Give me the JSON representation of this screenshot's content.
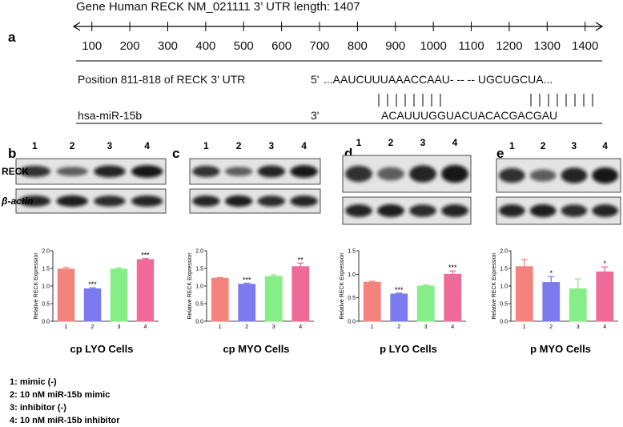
{
  "gene": {
    "title": "Gene Human  RECK NM_021111 3’ UTR length:  1407",
    "panel": "a",
    "axis": {
      "xlim": [
        52,
        1445
      ],
      "xticks": [
        100,
        200,
        300,
        400,
        500,
        600,
        700,
        800,
        900,
        1000,
        1100,
        1200,
        1300,
        1400
      ]
    },
    "position_label": "Position 811-818 of RECK 3' UTR",
    "utr_end": "5'",
    "utr_seq": "...AAUCUUUAAACCAAU-  -- -- UGCUGCUA...",
    "mirna_label": "hsa-miR-15b",
    "mirna_end": "3'",
    "mirna_seq": "ACAUUUGGUACUACACGACGAU"
  },
  "blots": {
    "panels": [
      "b",
      "c",
      "d",
      "e"
    ],
    "lanes": [
      "1",
      "2",
      "3",
      "4"
    ],
    "rows": [
      "RECK",
      "β-actin"
    ]
  },
  "legend": [
    "1:  mimic (-)",
    "2:  10 nM miR-15b mimic",
    "3:  inhibitor (-)",
    "4:  10 nM miR-15b inhibitor"
  ],
  "chart_data": [
    {
      "type": "bar",
      "title": "cp LYO Cells",
      "ylabel": "Relative RECK Expression",
      "categories": [
        "1",
        "2",
        "3",
        "4"
      ],
      "values": [
        1.48,
        0.92,
        1.48,
        1.75
      ],
      "errors": [
        0.05,
        0.03,
        0.04,
        0.03
      ],
      "annotations": [
        null,
        "***",
        null,
        "***"
      ],
      "colors": [
        "#f4837d",
        "#7b7bef",
        "#86ee86",
        "#ef6a98"
      ],
      "ylim": [
        0,
        2.0
      ],
      "yticks": [
        {
          "value": 0,
          "label": "0.0"
        },
        {
          "value": 0.5,
          "label": "0.5"
        },
        {
          "value": 1,
          "label": "1.0"
        },
        {
          "value": 1.5,
          "label": "1.5"
        },
        {
          "value": 2,
          "label": "2.0"
        }
      ]
    },
    {
      "type": "bar",
      "title": "cp MYO Cells",
      "ylabel": "Relative RECK Expression",
      "categories": [
        "1",
        "2",
        "3",
        "4"
      ],
      "values": [
        1.22,
        1.05,
        1.27,
        1.55
      ],
      "errors": [
        0.02,
        0.03,
        0.05,
        0.1
      ],
      "annotations": [
        null,
        "***",
        null,
        "**"
      ],
      "colors": [
        "#f4837d",
        "#7b7bef",
        "#86ee86",
        "#ef6a98"
      ],
      "ylim": [
        0,
        2.0
      ],
      "yticks": [
        {
          "value": 0,
          "label": "0.0"
        },
        {
          "value": 0.5,
          "label": "0.5"
        },
        {
          "value": 1,
          "label": "1.0"
        },
        {
          "value": 1.5,
          "label": "1.5"
        },
        {
          "value": 2,
          "label": "2.0"
        }
      ]
    },
    {
      "type": "bar",
      "title": "p LYO Cells",
      "ylabel": "Relative RECK Expression",
      "categories": [
        "1",
        "2",
        "3",
        "4"
      ],
      "values": [
        0.83,
        0.58,
        0.75,
        1.0
      ],
      "errors": [
        0.02,
        0.02,
        0.02,
        0.07
      ],
      "annotations": [
        null,
        "***",
        null,
        "***"
      ],
      "colors": [
        "#f4837d",
        "#7b7bef",
        "#86ee86",
        "#ef6a98"
      ],
      "ylim": [
        0,
        1.5
      ],
      "yticks": [
        {
          "value": 0,
          "label": "0.0"
        },
        {
          "value": 0.5,
          "label": "0.5"
        },
        {
          "value": 1,
          "label": "1.0"
        },
        {
          "value": 1.5,
          "label": "1.5"
        }
      ]
    },
    {
      "type": "bar",
      "title": "p MYO  Cells",
      "ylabel": "Relative RECK Expression",
      "categories": [
        "1",
        "2",
        "3",
        "4"
      ],
      "values": [
        1.55,
        1.1,
        0.92,
        1.4
      ],
      "errors": [
        0.2,
        0.17,
        0.28,
        0.14
      ],
      "annotations": [
        null,
        "*",
        null,
        "*"
      ],
      "colors": [
        "#f4837d",
        "#7b7bef",
        "#86ee86",
        "#ef6a98"
      ],
      "ylim": [
        0,
        2.0
      ],
      "yticks": [
        {
          "value": 0,
          "label": "0.0"
        },
        {
          "value": 0.5,
          "label": "0.5"
        },
        {
          "value": 1,
          "label": "1.0"
        },
        {
          "value": 1.5,
          "label": "1.5"
        },
        {
          "value": 2,
          "label": "2.0"
        }
      ]
    }
  ]
}
